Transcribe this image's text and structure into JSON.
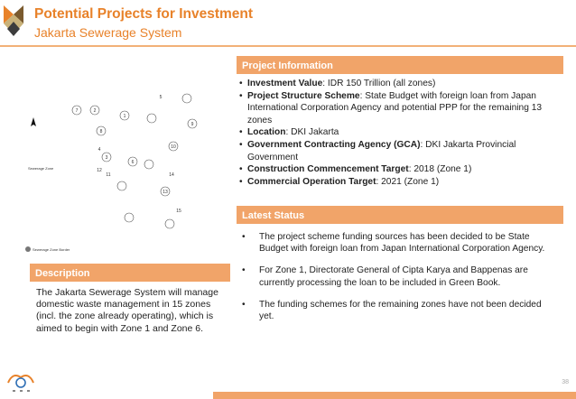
{
  "header": {
    "title": "Potential Projects for Investment",
    "subtitle": "Jakarta Sewerage System"
  },
  "map": {
    "zone_labels": [
      "1",
      "2",
      "3",
      "4",
      "5",
      "6",
      "7",
      "8",
      "9",
      "10",
      "11",
      "12",
      "13",
      "14",
      "15"
    ],
    "area_label": "Sewerage Zone",
    "legend": "Sewerage Zone Border"
  },
  "description": {
    "heading": "Description",
    "text": "The Jakarta Sewerage System will manage domestic waste management in 15 zones (incl. the zone already operating), which is aimed to begin with Zone 1 and Zone 6."
  },
  "project_info": {
    "heading": "Project Information",
    "items": [
      {
        "label": "Investment Value",
        "value": ": IDR 150 Trillion (all zones)"
      },
      {
        "label": "Project Structure Scheme",
        "value": ": State Budget with foreign loan from Japan International Corporation Agency and potential PPP for the remaining 13 zones"
      },
      {
        "label": "Location",
        "value": ": DKI Jakarta"
      },
      {
        "label": "Government Contracting Agency (GCA)",
        "value": ": DKI Jakarta Provincial Government"
      },
      {
        "label": "Construction Commencement Target",
        "value": ": 2018 (Zone 1)"
      },
      {
        "label": "Commercial Operation Target",
        "value": ": 2021 (Zone 1)"
      }
    ]
  },
  "latest_status": {
    "heading": "Latest Status",
    "items": [
      "The project scheme funding sources has been decided to be State Budget with foreign loan from Japan International Corporation Agency.",
      "For Zone 1, Directorate General of Cipta Karya and Bappenas are currently processing the loan to be included in Green Book.",
      "The funding schemes for the remaining zones have not been decided yet."
    ]
  },
  "footer": {
    "page_number": "38"
  },
  "colors": {
    "accent": "#e8822a",
    "panel": "#f1a469"
  }
}
